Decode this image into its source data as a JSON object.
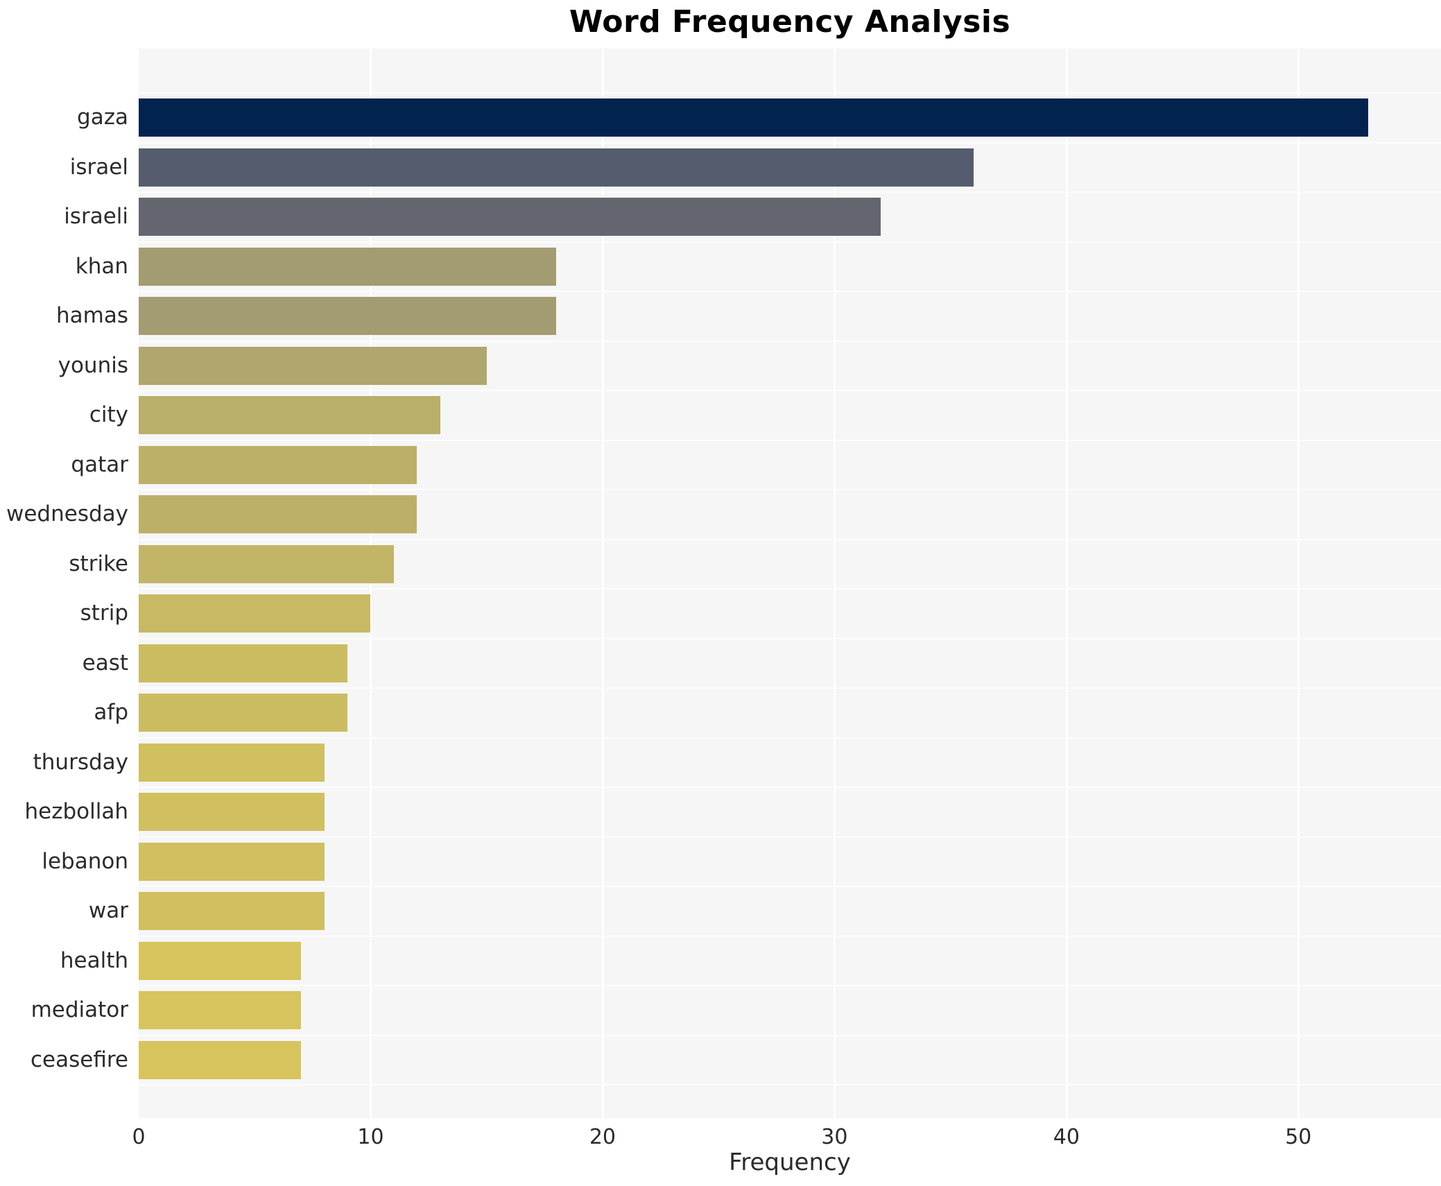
{
  "page": {
    "background_color": "#ffffff",
    "plot_background_color": "#f6f6f7",
    "grid_color": "#ffffff",
    "text_color": "#2b2b2b",
    "title_color": "#000000"
  },
  "chart_data": {
    "type": "bar",
    "orientation": "horizontal",
    "title": "Word Frequency Analysis",
    "xlabel": "Frequency",
    "ylabel": "",
    "categories": [
      "gaza",
      "israel",
      "israeli",
      "khan",
      "hamas",
      "younis",
      "city",
      "qatar",
      "wednesday",
      "strike",
      "strip",
      "east",
      "afp",
      "thursday",
      "hezbollah",
      "lebanon",
      "war",
      "health",
      "mediator",
      "ceasefire"
    ],
    "values": [
      53,
      36,
      32,
      18,
      18,
      15,
      13,
      12,
      12,
      11,
      10,
      9,
      9,
      8,
      8,
      8,
      8,
      7,
      7,
      7
    ],
    "bar_colors": [
      "#02234e",
      "#555c6e",
      "#63666f",
      "#a39c72",
      "#a39c72",
      "#b0a76e",
      "#b9ae6a",
      "#bcb069",
      "#bcb069",
      "#c3b567",
      "#c8b963",
      "#ccbc61",
      "#ccbc61",
      "#d0c05f",
      "#d0c05f",
      "#d0c05f",
      "#d0c05f",
      "#d7c45c",
      "#d7c45c",
      "#d7c45c"
    ],
    "x_ticks": [
      0,
      10,
      20,
      30,
      40,
      50
    ],
    "xlim": [
      0,
      56.15
    ],
    "grid": true,
    "legend": false,
    "colormap": "cividis (value-mapped, high=dark navy, low=yellow)"
  }
}
